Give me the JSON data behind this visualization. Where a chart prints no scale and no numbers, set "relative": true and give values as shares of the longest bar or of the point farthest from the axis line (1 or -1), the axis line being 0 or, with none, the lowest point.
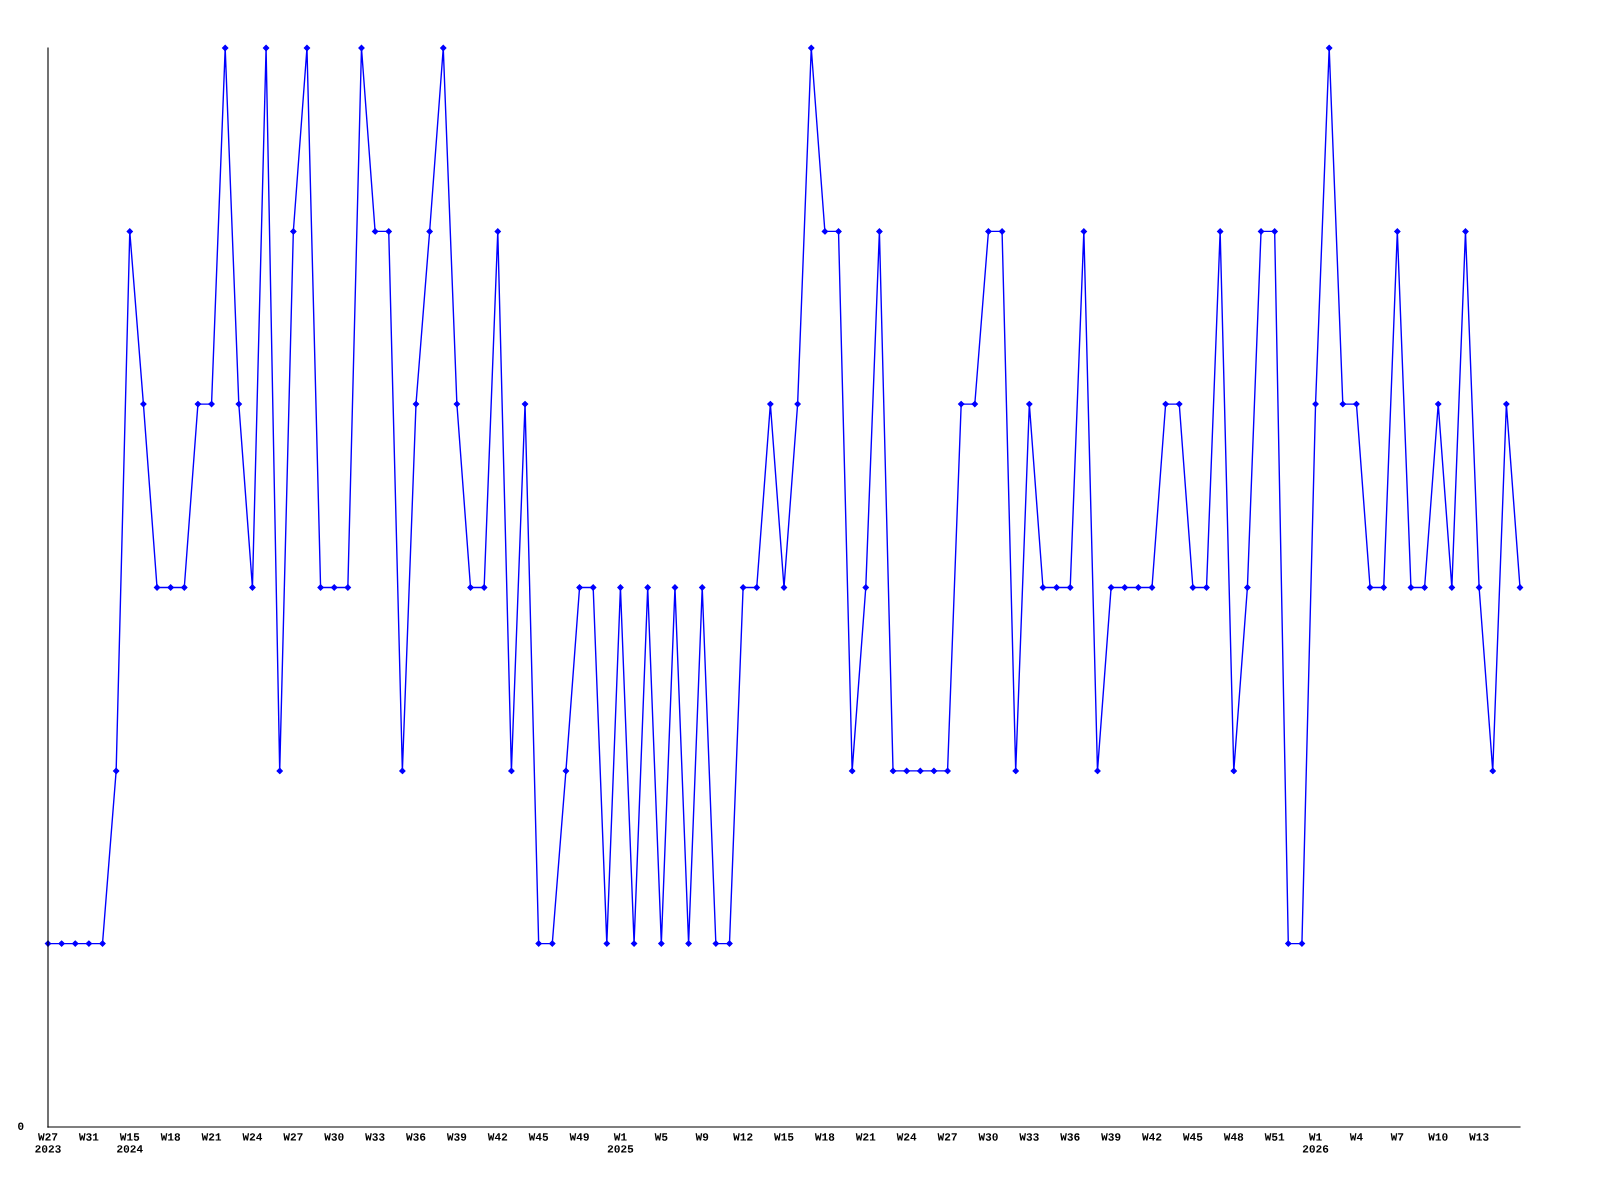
{
  "chart_data": {
    "type": "line",
    "relative": true,
    "marker": "diamond",
    "line_style": "solid",
    "grid": false,
    "legend": false,
    "categories": [
      "W27\n2023",
      null,
      null,
      "W31",
      null,
      null,
      "W15\n2024",
      null,
      null,
      "W18",
      null,
      null,
      "W21",
      null,
      null,
      "W24",
      null,
      null,
      "W27",
      null,
      null,
      "W30",
      null,
      null,
      "W33",
      null,
      null,
      "W36",
      null,
      null,
      "W39",
      null,
      null,
      "W42",
      null,
      null,
      "W45",
      null,
      null,
      "W49",
      null,
      null,
      "W1\n2025",
      null,
      null,
      "W5",
      null,
      null,
      "W9",
      null,
      null,
      "W12",
      null,
      null,
      "W15",
      null,
      null,
      "W18",
      null,
      null,
      "W21",
      null,
      null,
      "W24",
      null,
      null,
      "W27",
      null,
      null,
      "W30",
      null,
      null,
      "W33",
      null,
      null,
      "W36",
      null,
      null,
      "W39",
      null,
      null,
      "W42",
      null,
      null,
      "W45",
      null,
      null,
      "W48",
      null,
      null,
      "W51",
      null,
      null,
      "W1\n2026",
      null,
      null,
      "W4",
      null,
      null,
      "W7",
      null,
      null,
      "W10",
      null,
      null,
      "W13",
      null,
      null,
      null
    ],
    "series": [
      {
        "color": "#0000ff",
        "values": [
          0.17,
          0.17,
          0.17,
          0.17,
          0.17,
          0.33,
          0.83,
          0.67,
          0.5,
          0.5,
          0.5,
          0.67,
          0.67,
          1,
          0.67,
          0.5,
          1,
          0.33,
          0.83,
          1,
          0.5,
          0.5,
          0.5,
          1,
          0.83,
          0.83,
          0.33,
          0.67,
          0.83,
          1,
          0.67,
          0.5,
          0.5,
          0.83,
          0.33,
          0.67,
          0.17,
          0.17,
          0.33,
          0.5,
          0.5,
          0.17,
          0.5,
          0.17,
          0.5,
          0.17,
          0.5,
          0.17,
          0.5,
          0.17,
          0.17,
          0.5,
          0.5,
          0.67,
          0.5,
          0.67,
          1,
          0.83,
          0.83,
          0.33,
          0.5,
          0.83,
          0.33,
          0.33,
          0.33,
          0.33,
          0.33,
          0.67,
          0.67,
          0.83,
          0.83,
          0.33,
          0.67,
          0.5,
          0.5,
          0.5,
          0.83,
          0.33,
          0.5,
          0.5,
          0.5,
          0.5,
          0.67,
          0.67,
          0.5,
          0.5,
          0.83,
          0.33,
          0.5,
          0.83,
          0.83,
          0.17,
          0.17,
          0.67,
          1,
          0.67,
          0.67,
          0.5,
          0.5,
          0.83,
          0.5,
          0.5,
          0.67,
          0.5,
          0.83,
          0.5,
          0.33,
          0.67,
          0.5
        ]
      }
    ],
    "annotations": [
      "0"
    ]
  }
}
